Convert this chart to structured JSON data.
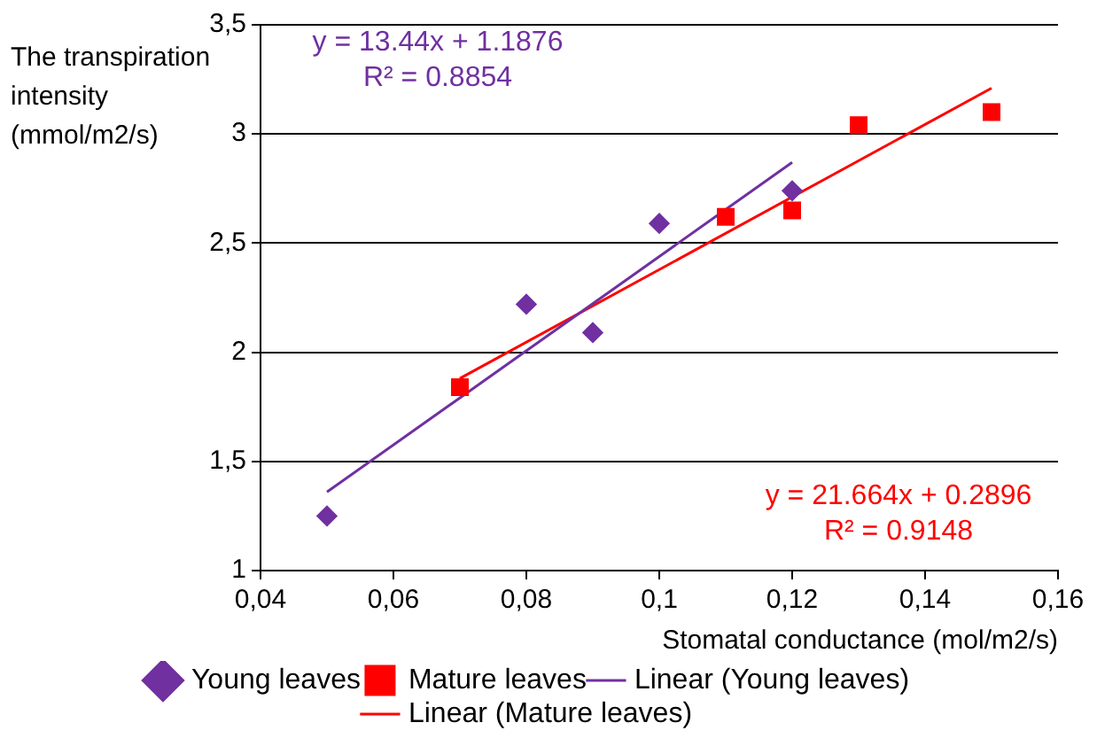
{
  "chart_data": {
    "type": "scatter",
    "xlabel": "Stomatal conductance (mol/m2/s)",
    "ylabel": "The transpiration intensity (mmol/m2/s)",
    "xlim": [
      0.04,
      0.16
    ],
    "xticks": [
      {
        "value": 0.04,
        "label": "0,04"
      },
      {
        "value": 0.06,
        "label": "0,06"
      },
      {
        "value": 0.08,
        "label": "0,08"
      },
      {
        "value": 0.1,
        "label": "0,1"
      },
      {
        "value": 0.12,
        "label": "0,12"
      },
      {
        "value": 0.14,
        "label": "0,14"
      },
      {
        "value": 0.16,
        "label": "0,16"
      }
    ],
    "ylim": [
      1,
      3.5
    ],
    "yticks": [
      1,
      {
        "value": 1.5,
        "label": "1,5"
      },
      2,
      {
        "value": 2.5,
        "label": "2,5"
      },
      3,
      {
        "value": 3.5,
        "label": "3,5"
      }
    ],
    "legend": "bottom",
    "grid": "y",
    "series": [
      {
        "name": "Young leaves",
        "color": "#7030a0",
        "marker": "diamond",
        "x": [
          0.05,
          0.08,
          0.09,
          0.1,
          0.12
        ],
        "values": [
          1.25,
          2.22,
          2.09,
          2.59,
          2.74
        ]
      },
      {
        "name": "Mature leaves",
        "color": "#ff0000",
        "marker": "square",
        "x": [
          0.07,
          0.11,
          0.12,
          0.13,
          0.15
        ],
        "values": [
          1.84,
          2.62,
          2.65,
          3.04,
          3.1
        ]
      },
      {
        "name": "Linear (Young leaves)",
        "type": "line",
        "color": "#7030a0",
        "x": [
          0.05,
          0.12
        ],
        "values": [
          1.36,
          2.87
        ]
      },
      {
        "name": "Linear (Mature leaves)",
        "type": "line",
        "color": "#ff0000",
        "x": [
          0.07,
          0.15
        ],
        "values": [
          1.88,
          3.21
        ]
      }
    ],
    "annotations": [
      "y = 13.44x + 1.1876\nR² = 0.8854",
      "y = 21.664x + 0.2896\nR² = 0.9148"
    ]
  }
}
